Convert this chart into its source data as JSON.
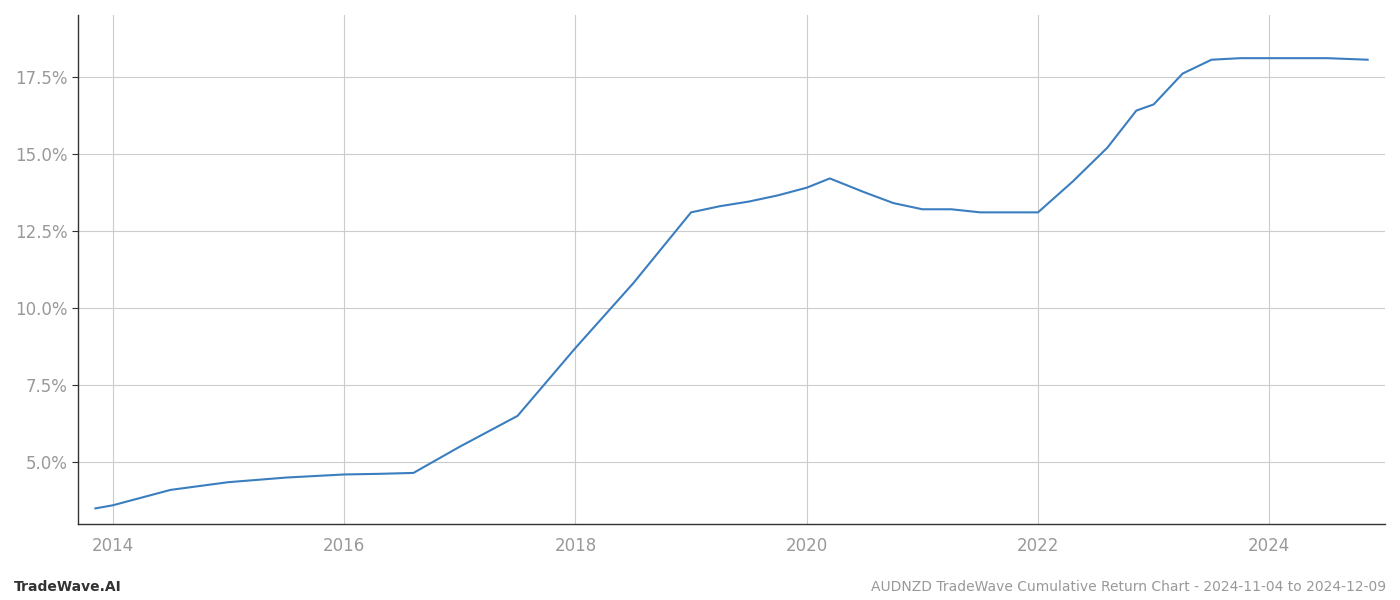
{
  "title": "",
  "footer_left": "TradeWave.AI",
  "footer_right": "AUDNZD TradeWave Cumulative Return Chart - 2024-11-04 to 2024-12-09",
  "line_color": "#3a7ebf",
  "background_color": "#ffffff",
  "grid_color": "#cccccc",
  "x_years": [
    2013.85,
    2014.0,
    2014.5,
    2015.0,
    2015.5,
    2016.0,
    2016.3,
    2016.6,
    2017.0,
    2017.5,
    2018.0,
    2018.5,
    2019.0,
    2019.25,
    2019.5,
    2019.75,
    2020.0,
    2020.2,
    2020.5,
    2020.75,
    2021.0,
    2021.25,
    2021.5,
    2022.0,
    2022.3,
    2022.6,
    2022.85,
    2023.0,
    2023.25,
    2023.5,
    2023.75,
    2024.0,
    2024.5,
    2024.85
  ],
  "y_values": [
    3.5,
    3.6,
    4.1,
    4.35,
    4.5,
    4.6,
    4.62,
    4.65,
    5.5,
    6.5,
    8.7,
    10.8,
    13.1,
    13.3,
    13.45,
    13.65,
    13.9,
    14.2,
    13.75,
    13.4,
    13.2,
    13.2,
    13.1,
    13.1,
    14.1,
    15.2,
    16.4,
    16.6,
    17.6,
    18.05,
    18.1,
    18.1,
    18.1,
    18.05
  ],
  "ylim": [
    3.0,
    19.5
  ],
  "xlim": [
    2013.7,
    2025.0
  ],
  "yticks": [
    5.0,
    7.5,
    10.0,
    12.5,
    15.0,
    17.5
  ],
  "xticks": [
    2014,
    2016,
    2018,
    2020,
    2022,
    2024
  ],
  "line_width": 1.5,
  "tick_label_color": "#999999",
  "tick_fontsize": 12,
  "footer_fontsize": 10,
  "spine_color": "#333333"
}
